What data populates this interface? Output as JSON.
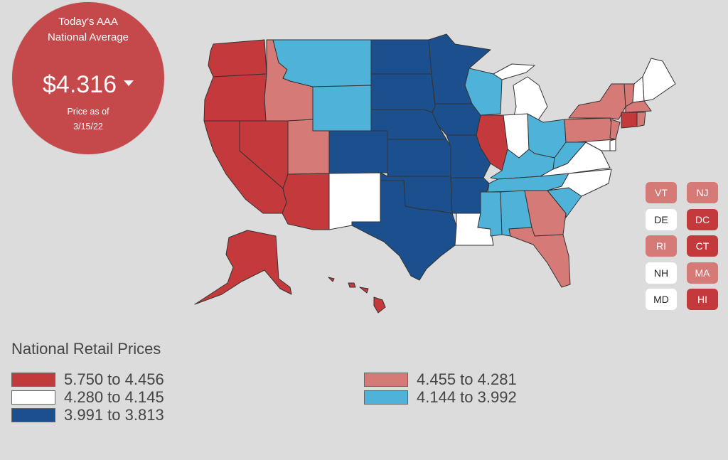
{
  "badge": {
    "title_line1": "Today's AAA",
    "title_line2": "National Average",
    "price": "$4.316",
    "price_direction": "down",
    "asof_line1": "Price as of",
    "asof_line2": "3/15/22"
  },
  "colors": {
    "tier1": "#c4393b",
    "tier2": "#d67a78",
    "tier3": "#ffffff",
    "tier4": "#4fb3d9",
    "tier5": "#1b4f8e",
    "outline": "#333333"
  },
  "legend": {
    "title": "National Retail Prices",
    "items": [
      {
        "label": "5.750 to 4.456",
        "tier": "tier1"
      },
      {
        "label": "4.280 to 4.145",
        "tier": "tier3"
      },
      {
        "label": "3.991 to 3.813",
        "tier": "tier5"
      },
      {
        "label": "4.455 to 4.281",
        "tier": "tier2"
      },
      {
        "label": "4.144 to 3.992",
        "tier": "tier4"
      }
    ]
  },
  "small_states": [
    {
      "code": "VT",
      "tier": "tier2"
    },
    {
      "code": "NJ",
      "tier": "tier2"
    },
    {
      "code": "DE",
      "tier": "tier3"
    },
    {
      "code": "DC",
      "tier": "tier1"
    },
    {
      "code": "RI",
      "tier": "tier2"
    },
    {
      "code": "CT",
      "tier": "tier1"
    },
    {
      "code": "NH",
      "tier": "tier3"
    },
    {
      "code": "MA",
      "tier": "tier2"
    },
    {
      "code": "MD",
      "tier": "tier3"
    },
    {
      "code": "HI",
      "tier": "tier1"
    }
  ],
  "states": {
    "WA": "tier1",
    "OR": "tier1",
    "CA": "tier1",
    "NV": "tier1",
    "AZ": "tier1",
    "ID": "tier2",
    "UT": "tier2",
    "MT": "tier4",
    "WY": "tier4",
    "NM": "tier3",
    "CO": "tier5",
    "ND": "tier5",
    "SD": "tier5",
    "NE": "tier5",
    "KS": "tier5",
    "OK": "tier5",
    "TX": "tier5",
    "MN": "tier5",
    "IA": "tier5",
    "MO": "tier5",
    "AR": "tier5",
    "LA": "tier3",
    "WI": "tier4",
    "IL": "tier1",
    "MI": "tier3",
    "IN": "tier3",
    "OH": "tier4",
    "KY": "tier4",
    "TN": "tier4",
    "MS": "tier4",
    "AL": "tier4",
    "GA": "tier2",
    "FL": "tier2",
    "SC": "tier4",
    "NC": "tier3",
    "VA": "tier3",
    "WV": "tier4",
    "PA": "tier2",
    "NY": "tier2",
    "ME": "tier3",
    "VT": "tier2",
    "NH": "tier3",
    "MA": "tier2",
    "CT": "tier1",
    "RI": "tier2",
    "NJ": "tier2",
    "DE": "tier3",
    "MD": "tier3",
    "AK": "tier1",
    "HI": "tier1"
  }
}
